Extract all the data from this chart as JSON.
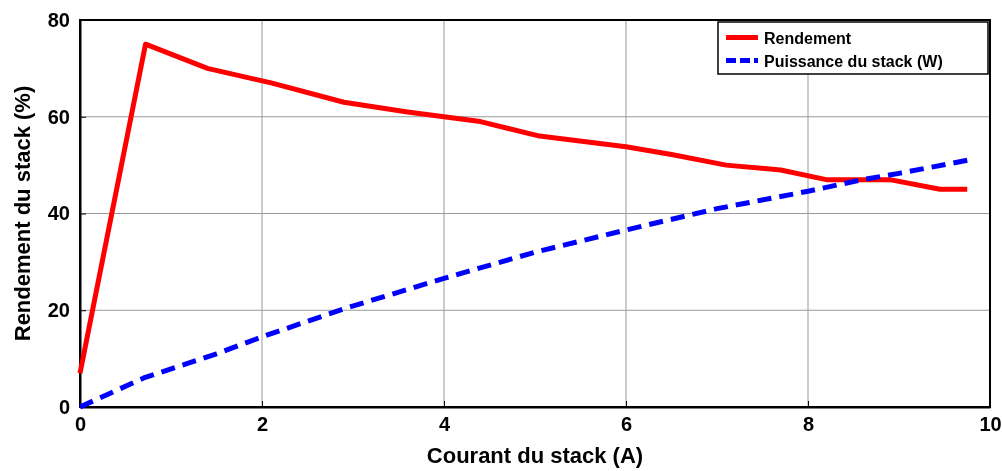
{
  "chart_data": {
    "type": "line",
    "xlabel": "Courant du stack (A)",
    "ylabel": "Rendement du stack (%)",
    "xlim": [
      0,
      10
    ],
    "xticks": [
      0,
      2,
      4,
      6,
      8,
      10
    ],
    "ylim": [
      0,
      80
    ],
    "yticks": [
      0,
      20,
      40,
      60,
      80
    ],
    "grid": true,
    "legend": "top right",
    "series": [
      {
        "name": "Rendement",
        "color": "#ff0000",
        "line_style": "solid",
        "x": [
          0,
          0.72,
          1.4,
          2.1,
          2.9,
          3.6,
          4.4,
          5.05,
          6,
          6.5,
          7.1,
          7.7,
          8.2,
          8.9,
          9.45,
          9.75
        ],
        "values": [
          7,
          75,
          70,
          67,
          63,
          61,
          59,
          56,
          53.8,
          52.2,
          50,
          49,
          47,
          47,
          45,
          45
        ]
      },
      {
        "name": "Puissance du stack (W)",
        "color": "#0000ff",
        "line_style": "dashed",
        "x": [
          0,
          0.7,
          1.5,
          2,
          2.9,
          4,
          5,
          6,
          7,
          8,
          8.6,
          9,
          9.75
        ],
        "values": [
          0,
          6,
          11,
          14.5,
          20.3,
          26.6,
          32,
          36.6,
          41,
          44.6,
          47,
          48.3,
          51
        ]
      }
    ]
  }
}
